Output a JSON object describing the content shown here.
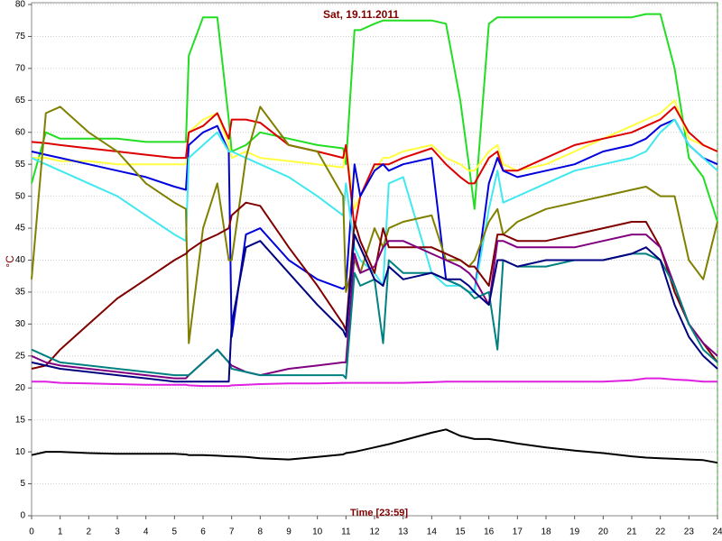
{
  "chart_data": {
    "type": "line",
    "title": "Sat, 19.11.2011",
    "x_label": "Time [23:59]",
    "y_label": "°C",
    "x": [
      0,
      0.5,
      1,
      2,
      3,
      4,
      5,
      5.4,
      5.5,
      6,
      6.5,
      6.9,
      7,
      7.5,
      8,
      9,
      10,
      10.9,
      11,
      11.3,
      11.5,
      12,
      12.3,
      12.5,
      13,
      14,
      14.5,
      15,
      15.3,
      15.5,
      16,
      16.3,
      16.5,
      17,
      18,
      19,
      20,
      21,
      21.5,
      22,
      22.5,
      23,
      23.5,
      24
    ],
    "series": [
      {
        "color": "#22dd22",
        "values": [
          52,
          60,
          59,
          59,
          59,
          58.5,
          58.5,
          58.5,
          72,
          78,
          78,
          62,
          57,
          58,
          60,
          59,
          58,
          57.5,
          55,
          76,
          76,
          77,
          77.5,
          77.5,
          77.5,
          77.5,
          77,
          65,
          55,
          48,
          77,
          78,
          78,
          78,
          78,
          78,
          78,
          78,
          78.5,
          78.5,
          70,
          56,
          53,
          46
        ]
      },
      {
        "color": "#ffff40",
        "values": [
          56,
          56,
          55.5,
          55.5,
          55,
          55,
          55,
          55,
          60,
          62,
          63,
          58,
          56,
          57,
          56,
          55.5,
          55,
          54.5,
          58,
          48,
          50,
          54,
          56,
          56,
          57,
          58,
          56,
          55,
          54,
          54,
          57,
          58,
          55,
          54,
          55,
          57,
          59,
          61,
          62,
          63,
          65,
          59,
          58,
          57
        ]
      },
      {
        "color": "#dd0000",
        "values": [
          58.5,
          58.3,
          58,
          57.5,
          57,
          56.5,
          56,
          56,
          60,
          61,
          63,
          59,
          62,
          62,
          61.5,
          58,
          57,
          56,
          58,
          45,
          50,
          55,
          55,
          55,
          56,
          57.5,
          55,
          53,
          52,
          52,
          56,
          57,
          54,
          54,
          56,
          58,
          59,
          60,
          61,
          62,
          64,
          60,
          58,
          57
        ]
      },
      {
        "color": "#0000dd",
        "values": [
          57,
          56.5,
          56,
          55,
          54,
          53,
          51.5,
          51,
          58,
          60,
          61,
          57,
          28,
          44,
          45,
          40,
          37,
          35.5,
          36,
          55,
          50,
          54,
          55,
          54,
          55,
          56,
          37,
          36,
          35,
          35,
          52,
          56,
          54,
          53,
          54,
          55,
          57,
          58,
          59,
          61,
          62,
          58,
          56,
          55
        ]
      },
      {
        "color": "#40e8f0",
        "values": [
          56,
          55,
          54,
          52,
          50,
          47,
          44,
          43,
          56,
          58,
          60,
          57,
          57,
          56,
          55,
          53,
          50,
          47,
          52,
          42,
          40,
          38,
          36,
          52,
          53,
          38,
          36,
          36,
          35,
          35,
          48,
          54,
          49,
          50,
          52,
          54,
          55,
          56,
          57,
          60,
          62,
          58,
          56,
          54
        ]
      },
      {
        "color": "#808000",
        "values": [
          37,
          63,
          64,
          60,
          57,
          52,
          49,
          48,
          27,
          45,
          52,
          40,
          40,
          56,
          64,
          58,
          57,
          50,
          35,
          40,
          38,
          45,
          42,
          45,
          46,
          47,
          40,
          40,
          39,
          40,
          46,
          48,
          44,
          46,
          48,
          49,
          50,
          51,
          51.5,
          50,
          50,
          40,
          37,
          46
        ]
      },
      {
        "color": "#800000",
        "values": [
          23,
          23.5,
          26,
          30,
          34,
          37,
          40,
          41,
          41.5,
          43,
          44,
          45,
          47,
          49,
          48.5,
          42,
          36,
          30,
          29,
          46,
          43,
          38,
          45,
          42,
          42,
          42,
          41,
          40,
          39,
          39,
          36,
          44,
          44,
          43,
          43,
          44,
          45,
          46,
          46,
          42,
          35,
          30,
          27,
          24
        ]
      },
      {
        "color": "#800080",
        "values": [
          25,
          24,
          23.5,
          23,
          22.5,
          22,
          21.5,
          21.5,
          22,
          24,
          26,
          24,
          23.5,
          22.5,
          22,
          23,
          23.5,
          24,
          24,
          41,
          38,
          39,
          42,
          43,
          43,
          41,
          40,
          39,
          38,
          37,
          33,
          43,
          43,
          42,
          42,
          42,
          43,
          44,
          44,
          42,
          36,
          30,
          27,
          25
        ]
      },
      {
        "color": "#008080",
        "values": [
          26,
          25,
          24,
          23.5,
          23,
          22.5,
          22,
          22,
          22,
          24,
          26,
          24,
          23,
          22.5,
          22,
          22,
          22,
          22,
          21.5,
          38,
          36,
          37,
          27,
          40,
          38,
          38,
          37,
          36,
          35,
          34,
          35,
          26,
          40,
          39,
          39,
          40,
          40,
          41,
          41,
          40,
          36,
          30,
          26,
          24
        ]
      },
      {
        "color": "#000080",
        "values": [
          24,
          23.5,
          23,
          22.5,
          22,
          21.5,
          21,
          21,
          21,
          21,
          21,
          21,
          30,
          42,
          43,
          38,
          33,
          29,
          28,
          44,
          42,
          37,
          36,
          39,
          37,
          38,
          37,
          37,
          36,
          35,
          33,
          40,
          40,
          39,
          40,
          40,
          40,
          41,
          42,
          40,
          33,
          28,
          25,
          23
        ]
      },
      {
        "color": "#e020e0",
        "values": [
          21,
          21,
          20.8,
          20.7,
          20.6,
          20.5,
          20.5,
          20.5,
          20.4,
          20.3,
          20.3,
          20.3,
          20.4,
          20.5,
          20.6,
          20.7,
          20.7,
          20.8,
          20.8,
          20.8,
          20.8,
          20.8,
          20.8,
          20.8,
          20.8,
          20.9,
          21,
          21,
          21,
          21,
          21,
          21,
          21,
          21,
          21,
          21,
          21,
          21.2,
          21.5,
          21.5,
          21.3,
          21.2,
          21,
          21
        ]
      },
      {
        "color": "#000000",
        "values": [
          9.5,
          10,
          10,
          9.8,
          9.7,
          9.7,
          9.7,
          9.6,
          9.5,
          9.5,
          9.4,
          9.3,
          9.3,
          9.2,
          9,
          8.8,
          9.2,
          9.6,
          9.8,
          10,
          10.2,
          10.7,
          11,
          11.2,
          11.8,
          13,
          13.5,
          12.5,
          12.2,
          12,
          12,
          11.8,
          11.7,
          11.3,
          10.7,
          10.2,
          9.8,
          9.3,
          9.1,
          9,
          8.9,
          8.8,
          8.7,
          8.3
        ]
      }
    ],
    "xlim": [
      0,
      24
    ],
    "xticks": [
      0,
      1,
      2,
      3,
      4,
      5,
      6,
      7,
      8,
      9,
      10,
      11,
      12,
      13,
      14,
      15,
      16,
      17,
      18,
      19,
      20,
      21,
      22,
      23,
      24
    ],
    "ylim": [
      0,
      80
    ],
    "yticks": [
      0,
      5,
      10,
      15,
      20,
      25,
      30,
      35,
      40,
      45,
      50,
      55,
      60,
      65,
      70,
      75,
      80
    ],
    "grid": true
  }
}
